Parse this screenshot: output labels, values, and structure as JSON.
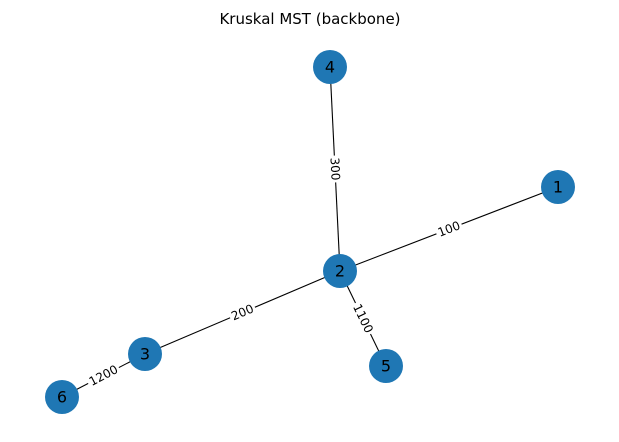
{
  "title": "Kruskal MST (backbone)",
  "colors": {
    "node_fill": "#1f77b4",
    "edge": "#000000",
    "label_bg": "#ffffff",
    "background": "#ffffff"
  },
  "nodes": [
    {
      "id": "1",
      "label": "1"
    },
    {
      "id": "2",
      "label": "2"
    },
    {
      "id": "3",
      "label": "3"
    },
    {
      "id": "4",
      "label": "4"
    },
    {
      "id": "5",
      "label": "5"
    },
    {
      "id": "6",
      "label": "6"
    }
  ],
  "edges": [
    {
      "source": "2",
      "target": "1",
      "weight": "100"
    },
    {
      "source": "2",
      "target": "3",
      "weight": "200"
    },
    {
      "source": "2",
      "target": "4",
      "weight": "300"
    },
    {
      "source": "2",
      "target": "5",
      "weight": "1100"
    },
    {
      "source": "3",
      "target": "6",
      "weight": "1200"
    }
  ]
}
